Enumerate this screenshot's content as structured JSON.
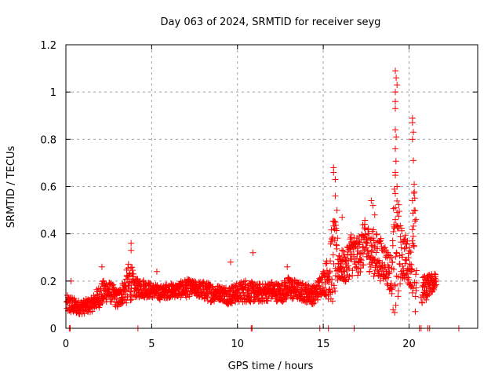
{
  "chart_data": {
    "type": "scatter",
    "title": "Day 063 of 2024, SRMTID for receiver seyg",
    "xlabel": "GPS time / hours",
    "ylabel": "SRMTID / TECUs",
    "xlim": [
      0,
      24
    ],
    "ylim": [
      0,
      1.2
    ],
    "xticks": [
      0,
      5,
      10,
      15,
      20
    ],
    "xtick_labels": [
      "0",
      "5",
      "10",
      "15",
      "20"
    ],
    "yticks": [
      0,
      0.2,
      0.4,
      0.6,
      0.8,
      1.0,
      1.2
    ],
    "ytick_labels": [
      "0",
      "0.2",
      "0.4",
      "0.6",
      "0.8",
      "1",
      "1.2"
    ],
    "grid": true,
    "marker": "plus",
    "series": [
      {
        "name": "SRMTID",
        "color": "#ff0000",
        "envelope_x": [
          0.0,
          0.3,
          0.6,
          1.0,
          1.5,
          2.0,
          2.3,
          2.7,
          3.0,
          3.4,
          3.7,
          3.8,
          4.0,
          4.5,
          5.0,
          5.5,
          6.0,
          6.5,
          7.0,
          7.5,
          8.0,
          8.5,
          9.0,
          9.5,
          10.0,
          10.5,
          11.0,
          11.5,
          12.0,
          12.5,
          13.0,
          13.5,
          14.0,
          14.5,
          15.0,
          15.3,
          15.6,
          15.9,
          16.3,
          16.6,
          17.0,
          17.4,
          17.8,
          18.2,
          18.6,
          19.0,
          19.2,
          19.5,
          19.8,
          20.1,
          20.3,
          20.6,
          20.8,
          21.0,
          21.3,
          21.5
        ],
        "envelope_mean": [
          0.1,
          0.1,
          0.09,
          0.09,
          0.1,
          0.14,
          0.16,
          0.15,
          0.12,
          0.16,
          0.19,
          0.2,
          0.17,
          0.17,
          0.16,
          0.15,
          0.16,
          0.16,
          0.17,
          0.17,
          0.16,
          0.15,
          0.15,
          0.14,
          0.15,
          0.16,
          0.15,
          0.15,
          0.16,
          0.15,
          0.17,
          0.16,
          0.15,
          0.14,
          0.2,
          0.22,
          0.3,
          0.28,
          0.25,
          0.32,
          0.3,
          0.36,
          0.33,
          0.3,
          0.28,
          0.22,
          0.35,
          0.32,
          0.3,
          0.26,
          0.33,
          0.0,
          0.17,
          0.18,
          0.19,
          0.2
        ],
        "envelope_spread": [
          0.04,
          0.04,
          0.03,
          0.03,
          0.03,
          0.05,
          0.05,
          0.04,
          0.04,
          0.05,
          0.1,
          0.08,
          0.04,
          0.04,
          0.03,
          0.03,
          0.03,
          0.03,
          0.04,
          0.03,
          0.04,
          0.04,
          0.03,
          0.04,
          0.04,
          0.05,
          0.04,
          0.04,
          0.04,
          0.04,
          0.05,
          0.04,
          0.04,
          0.04,
          0.05,
          0.1,
          0.2,
          0.08,
          0.06,
          0.1,
          0.08,
          0.1,
          0.1,
          0.1,
          0.08,
          0.08,
          0.4,
          0.12,
          0.1,
          0.08,
          0.3,
          0.0,
          0.05,
          0.05,
          0.04,
          0.04
        ],
        "spikes": [
          {
            "x": 0.3,
            "y": 0.2
          },
          {
            "x": 2.1,
            "y": 0.26
          },
          {
            "x": 3.6,
            "y": 0.22
          },
          {
            "x": 3.8,
            "y": 0.36
          },
          {
            "x": 3.8,
            "y": 0.33
          },
          {
            "x": 5.3,
            "y": 0.24
          },
          {
            "x": 9.6,
            "y": 0.28
          },
          {
            "x": 10.9,
            "y": 0.32
          },
          {
            "x": 12.9,
            "y": 0.26
          },
          {
            "x": 15.6,
            "y": 0.68
          },
          {
            "x": 15.6,
            "y": 0.66
          },
          {
            "x": 15.7,
            "y": 0.63
          },
          {
            "x": 15.7,
            "y": 0.56
          },
          {
            "x": 15.8,
            "y": 0.5
          },
          {
            "x": 16.1,
            "y": 0.47
          },
          {
            "x": 17.8,
            "y": 0.54
          },
          {
            "x": 17.9,
            "y": 0.52
          },
          {
            "x": 18.0,
            "y": 0.48
          },
          {
            "x": 19.2,
            "y": 1.09
          },
          {
            "x": 19.25,
            "y": 1.06
          },
          {
            "x": 19.3,
            "y": 1.03
          },
          {
            "x": 19.2,
            "y": 1.0
          },
          {
            "x": 19.2,
            "y": 0.96
          },
          {
            "x": 19.2,
            "y": 0.93
          },
          {
            "x": 19.2,
            "y": 0.84
          },
          {
            "x": 19.25,
            "y": 0.81
          },
          {
            "x": 19.2,
            "y": 0.76
          },
          {
            "x": 19.2,
            "y": 0.66
          },
          {
            "x": 19.3,
            "y": 0.6
          },
          {
            "x": 19.2,
            "y": 0.57
          },
          {
            "x": 19.2,
            "y": 0.51
          },
          {
            "x": 19.3,
            "y": 0.49
          },
          {
            "x": 19.2,
            "y": 0.46
          },
          {
            "x": 20.2,
            "y": 0.89
          },
          {
            "x": 20.2,
            "y": 0.87
          },
          {
            "x": 20.25,
            "y": 0.83
          },
          {
            "x": 20.2,
            "y": 0.8
          },
          {
            "x": 20.25,
            "y": 0.71
          },
          {
            "x": 20.3,
            "y": 0.61
          },
          {
            "x": 20.2,
            "y": 0.54
          },
          {
            "x": 20.3,
            "y": 0.5
          },
          {
            "x": 20.4,
            "y": 0.46
          },
          {
            "x": 20.2,
            "y": 0.15
          },
          {
            "x": 20.7,
            "y": 0.13
          },
          {
            "x": 21.0,
            "y": 0.12
          }
        ],
        "zero_points_x": [
          0.2,
          0.25,
          4.2,
          10.8,
          10.85,
          14.8,
          15.3,
          16.8,
          20.6,
          20.7,
          21.1,
          21.2,
          22.9
        ]
      }
    ]
  }
}
